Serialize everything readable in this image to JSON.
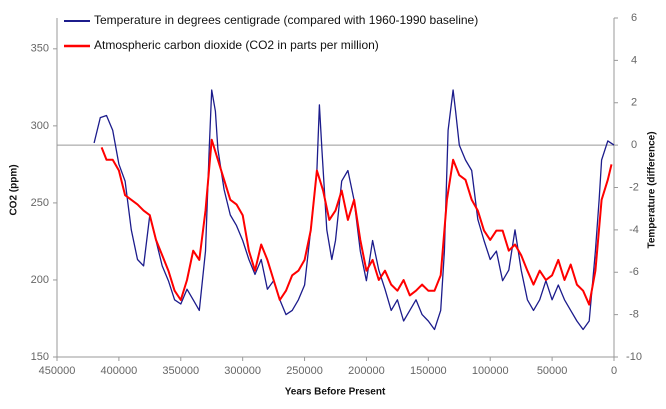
{
  "chart_data": {
    "type": "line",
    "x_label": "Years Before Present",
    "y_label": "CO2 (ppm)",
    "y2_label": "Temperature (difference)",
    "xlim": [
      450000,
      0
    ],
    "xticks": [
      450000,
      400000,
      350000,
      300000,
      250000,
      200000,
      150000,
      100000,
      50000,
      0
    ],
    "ylim": [
      150,
      370
    ],
    "yticks": [
      150,
      200,
      250,
      300,
      350
    ],
    "y2lim": [
      -10,
      6
    ],
    "y2ticks": [
      -10,
      -8,
      -6,
      -4,
      -2,
      0,
      2,
      4,
      6
    ],
    "y2_reference": 0,
    "legend": "top-left",
    "series": [
      {
        "name": "Temperature in degrees centigrade (compared with 1960-1990 baseline)",
        "color": "#1c1c8c",
        "axis": "y2",
        "x": [
          420000,
          415000,
          410000,
          405000,
          400000,
          395000,
          390000,
          385000,
          380000,
          375000,
          370000,
          365000,
          360000,
          355000,
          350000,
          345000,
          340000,
          335000,
          330000,
          327000,
          325000,
          322000,
          320000,
          315000,
          310000,
          305000,
          300000,
          295000,
          290000,
          285000,
          280000,
          275000,
          270000,
          265000,
          260000,
          255000,
          250000,
          245000,
          240000,
          238000,
          236000,
          232000,
          228000,
          225000,
          220000,
          215000,
          210000,
          205000,
          200000,
          195000,
          190000,
          185000,
          180000,
          175000,
          170000,
          165000,
          160000,
          155000,
          150000,
          145000,
          140000,
          137000,
          134000,
          130000,
          128000,
          125000,
          120000,
          115000,
          110000,
          105000,
          100000,
          95000,
          90000,
          85000,
          80000,
          75000,
          70000,
          65000,
          60000,
          55000,
          50000,
          45000,
          40000,
          35000,
          30000,
          25000,
          20000,
          15000,
          12000,
          10000,
          5000,
          0
        ],
        "values": [
          0.1,
          1.3,
          1.4,
          0.7,
          -0.9,
          -1.7,
          -4,
          -5.4,
          -5.7,
          -3.3,
          -4.5,
          -5.7,
          -6.4,
          -7.3,
          -7.5,
          -6.8,
          -7.3,
          -7.8,
          -5,
          -0.2,
          2.6,
          1.6,
          -0.2,
          -2.1,
          -3.3,
          -3.8,
          -4.5,
          -5.4,
          -6.1,
          -5.4,
          -6.8,
          -6.4,
          -7.3,
          -8,
          -7.8,
          -7.3,
          -6.6,
          -4,
          -1.2,
          1.9,
          -0.2,
          -4,
          -5.4,
          -4.5,
          -1.7,
          -1.2,
          -2.6,
          -5,
          -6.4,
          -4.5,
          -5.9,
          -6.8,
          -7.8,
          -7.3,
          -8.3,
          -7.8,
          -7.3,
          -8,
          -8.3,
          -8.7,
          -7.8,
          -5,
          0.7,
          2.6,
          1.6,
          0,
          -0.7,
          -1.2,
          -3.5,
          -4.5,
          -5.4,
          -5,
          -6.4,
          -5.9,
          -4,
          -5.9,
          -7.3,
          -7.8,
          -7.3,
          -6.4,
          -7.3,
          -6.6,
          -7.3,
          -7.8,
          -8.3,
          -8.7,
          -8.3,
          -5,
          -2.6,
          -0.7,
          0.2,
          0
        ]
      },
      {
        "name": "Atmospheric carbon dioxide (CO2 in parts per million)",
        "color": "#ff0000",
        "x": [
          414000,
          410000,
          405000,
          400000,
          395000,
          390000,
          385000,
          380000,
          375000,
          370000,
          365000,
          360000,
          355000,
          350000,
          345000,
          340000,
          335000,
          330000,
          325000,
          320000,
          315000,
          310000,
          305000,
          300000,
          295000,
          290000,
          285000,
          280000,
          275000,
          270000,
          265000,
          260000,
          255000,
          250000,
          245000,
          240000,
          235000,
          230000,
          225000,
          220000,
          215000,
          210000,
          205000,
          200000,
          195000,
          190000,
          185000,
          180000,
          175000,
          170000,
          165000,
          160000,
          155000,
          150000,
          145000,
          140000,
          135000,
          130000,
          125000,
          120000,
          115000,
          110000,
          105000,
          100000,
          95000,
          90000,
          85000,
          80000,
          75000,
          70000,
          65000,
          60000,
          55000,
          50000,
          45000,
          40000,
          35000,
          30000,
          25000,
          20000,
          15000,
          10000,
          5000,
          2000
        ],
        "values": [
          286,
          278,
          278,
          271,
          255,
          252,
          249,
          245,
          242,
          226,
          216,
          206,
          193,
          187,
          200,
          219,
          213,
          245,
          291,
          278,
          265,
          252,
          249,
          242,
          219,
          206,
          223,
          213,
          200,
          187,
          193,
          203,
          206,
          213,
          232,
          271,
          258,
          239,
          245,
          258,
          239,
          252,
          226,
          206,
          213,
          200,
          206,
          197,
          193,
          200,
          190,
          193,
          197,
          193,
          193,
          203,
          252,
          278,
          268,
          265,
          252,
          245,
          232,
          226,
          232,
          232,
          219,
          223,
          216,
          206,
          197,
          206,
          200,
          203,
          213,
          200,
          210,
          197,
          193,
          184,
          206,
          252,
          265,
          275
        ]
      }
    ]
  }
}
